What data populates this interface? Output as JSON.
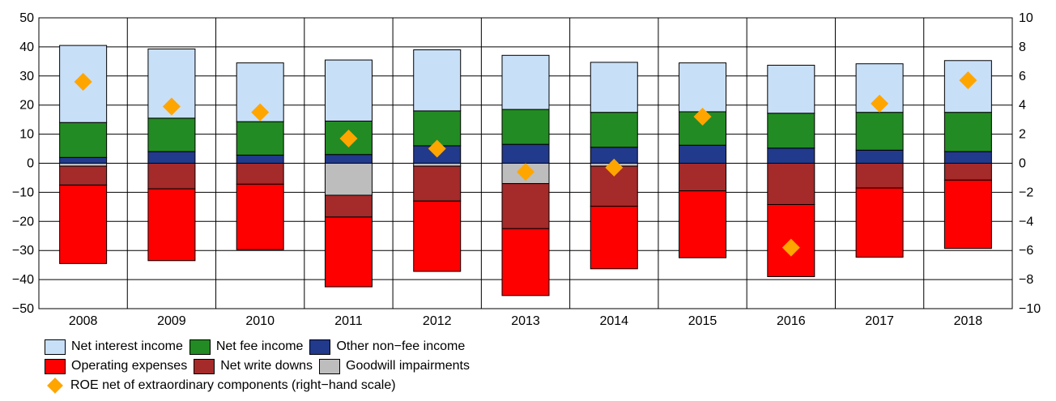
{
  "chart_data": {
    "type": "bar",
    "title": "",
    "categories": [
      "2008",
      "2009",
      "2010",
      "2011",
      "2012",
      "2013",
      "2014",
      "2015",
      "2016",
      "2017",
      "2018"
    ],
    "y_left": {
      "min": -50,
      "max": 50,
      "ticks": [
        "50",
        "40",
        "30",
        "20",
        "10",
        "0",
        "−10",
        "−20",
        "−30",
        "−40",
        "−50"
      ]
    },
    "y_right": {
      "min": -10,
      "max": 10,
      "ticks": [
        "10",
        "8",
        "6",
        "4",
        "2",
        "0",
        "−2",
        "−4",
        "−6",
        "−8",
        "−10"
      ]
    },
    "grid": true,
    "positive_series": [
      {
        "name": "Other non−fee income",
        "color": "#223a8c",
        "values": [
          2,
          4,
          2.8,
          3,
          6,
          6.5,
          5.5,
          6.2,
          5.2,
          4.5,
          4
        ]
      },
      {
        "name": "Net fee income",
        "color": "#238b23",
        "values": [
          12,
          11.5,
          11.5,
          11.5,
          12,
          12,
          12,
          11.5,
          12,
          13,
          13.5
        ]
      },
      {
        "name": "Net interest income",
        "color": "#c8dff8",
        "values": [
          26.5,
          23.8,
          20.2,
          21,
          21,
          18.6,
          17.2,
          16.8,
          16.5,
          16.7,
          17.8
        ]
      }
    ],
    "negative_series": [
      {
        "name": "Goodwill impairments",
        "color": "#bdbdbd",
        "values": [
          -1,
          0,
          0,
          -11,
          -1,
          -7,
          -1,
          0,
          0,
          0,
          0
        ]
      },
      {
        "name": "Net write downs",
        "color": "#a52a2a",
        "values": [
          -6.5,
          -8.8,
          -7.2,
          -7.5,
          -12,
          -15.5,
          -13.8,
          -9.5,
          -14.2,
          -8.5,
          -5.8
        ]
      },
      {
        "name": "Operating expenses",
        "color": "#ff0000",
        "values": [
          -27,
          -24.7,
          -22.5,
          -24,
          -24.2,
          -23,
          -21.5,
          -23,
          -24.8,
          -23.8,
          -23.5
        ]
      }
    ],
    "roe_series": {
      "name": "ROE net of extraordinary components (right−hand scale)",
      "color": "#ffa500",
      "axis": "right",
      "values": [
        5.6,
        3.9,
        3.5,
        1.7,
        1.0,
        -0.6,
        -0.3,
        3.2,
        -5.8,
        4.1,
        5.7
      ]
    },
    "legend_position": "bottom"
  },
  "legend": {
    "row1": [
      "Net interest income",
      "Net fee income",
      "Other non−fee income"
    ],
    "row2": [
      "Operating expenses",
      "Net write downs",
      "Goodwill impairments"
    ],
    "row3": [
      "ROE net of extraordinary components (right−hand scale)"
    ]
  },
  "colors": {
    "net_interest_income": "#c8dff8",
    "net_fee_income": "#238b23",
    "other_non_fee_income": "#223a8c",
    "operating_expenses": "#ff0000",
    "net_write_downs": "#a52a2a",
    "goodwill_impairments": "#bdbdbd",
    "roe": "#ffa500"
  }
}
